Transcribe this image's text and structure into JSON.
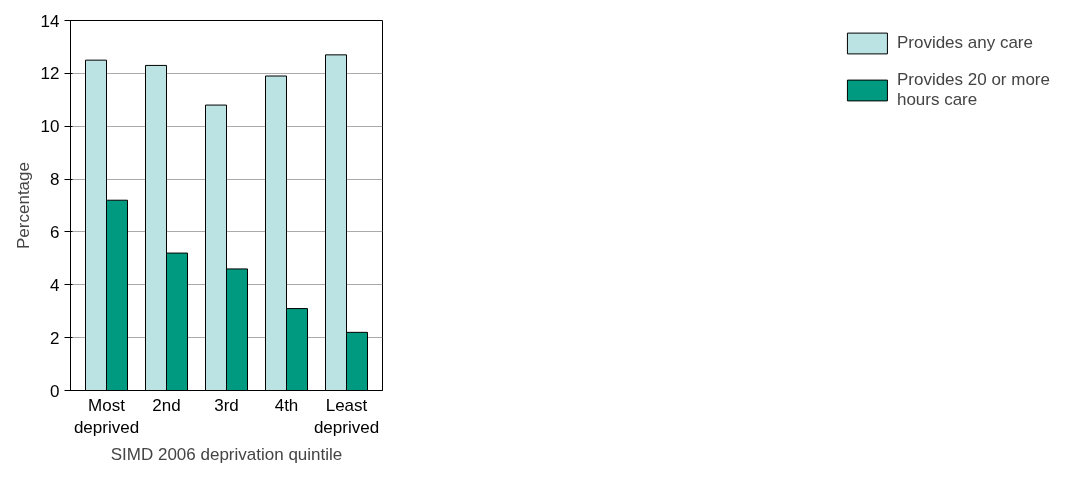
{
  "chart_data": {
    "type": "bar",
    "xlabel": "SIMD 2006 deprivation quintile",
    "ylabel": "Percentage",
    "categories": [
      "Most\ndeprived",
      "2nd",
      "3rd",
      "4th",
      "Least\ndeprived"
    ],
    "series": [
      {
        "name": "Provides any care",
        "color": "#bce3e3",
        "values": [
          12.5,
          12.3,
          10.8,
          11.9,
          12.7
        ]
      },
      {
        "name": "Provides 20 or more\nhours care",
        "color": "#009a80",
        "values": [
          7.2,
          5.2,
          4.6,
          3.1,
          2.2
        ]
      }
    ],
    "ylim": [
      0,
      14
    ],
    "yticks": [
      0,
      2,
      4,
      6,
      8,
      10,
      12,
      14
    ],
    "grid": "y",
    "legend": "right"
  }
}
